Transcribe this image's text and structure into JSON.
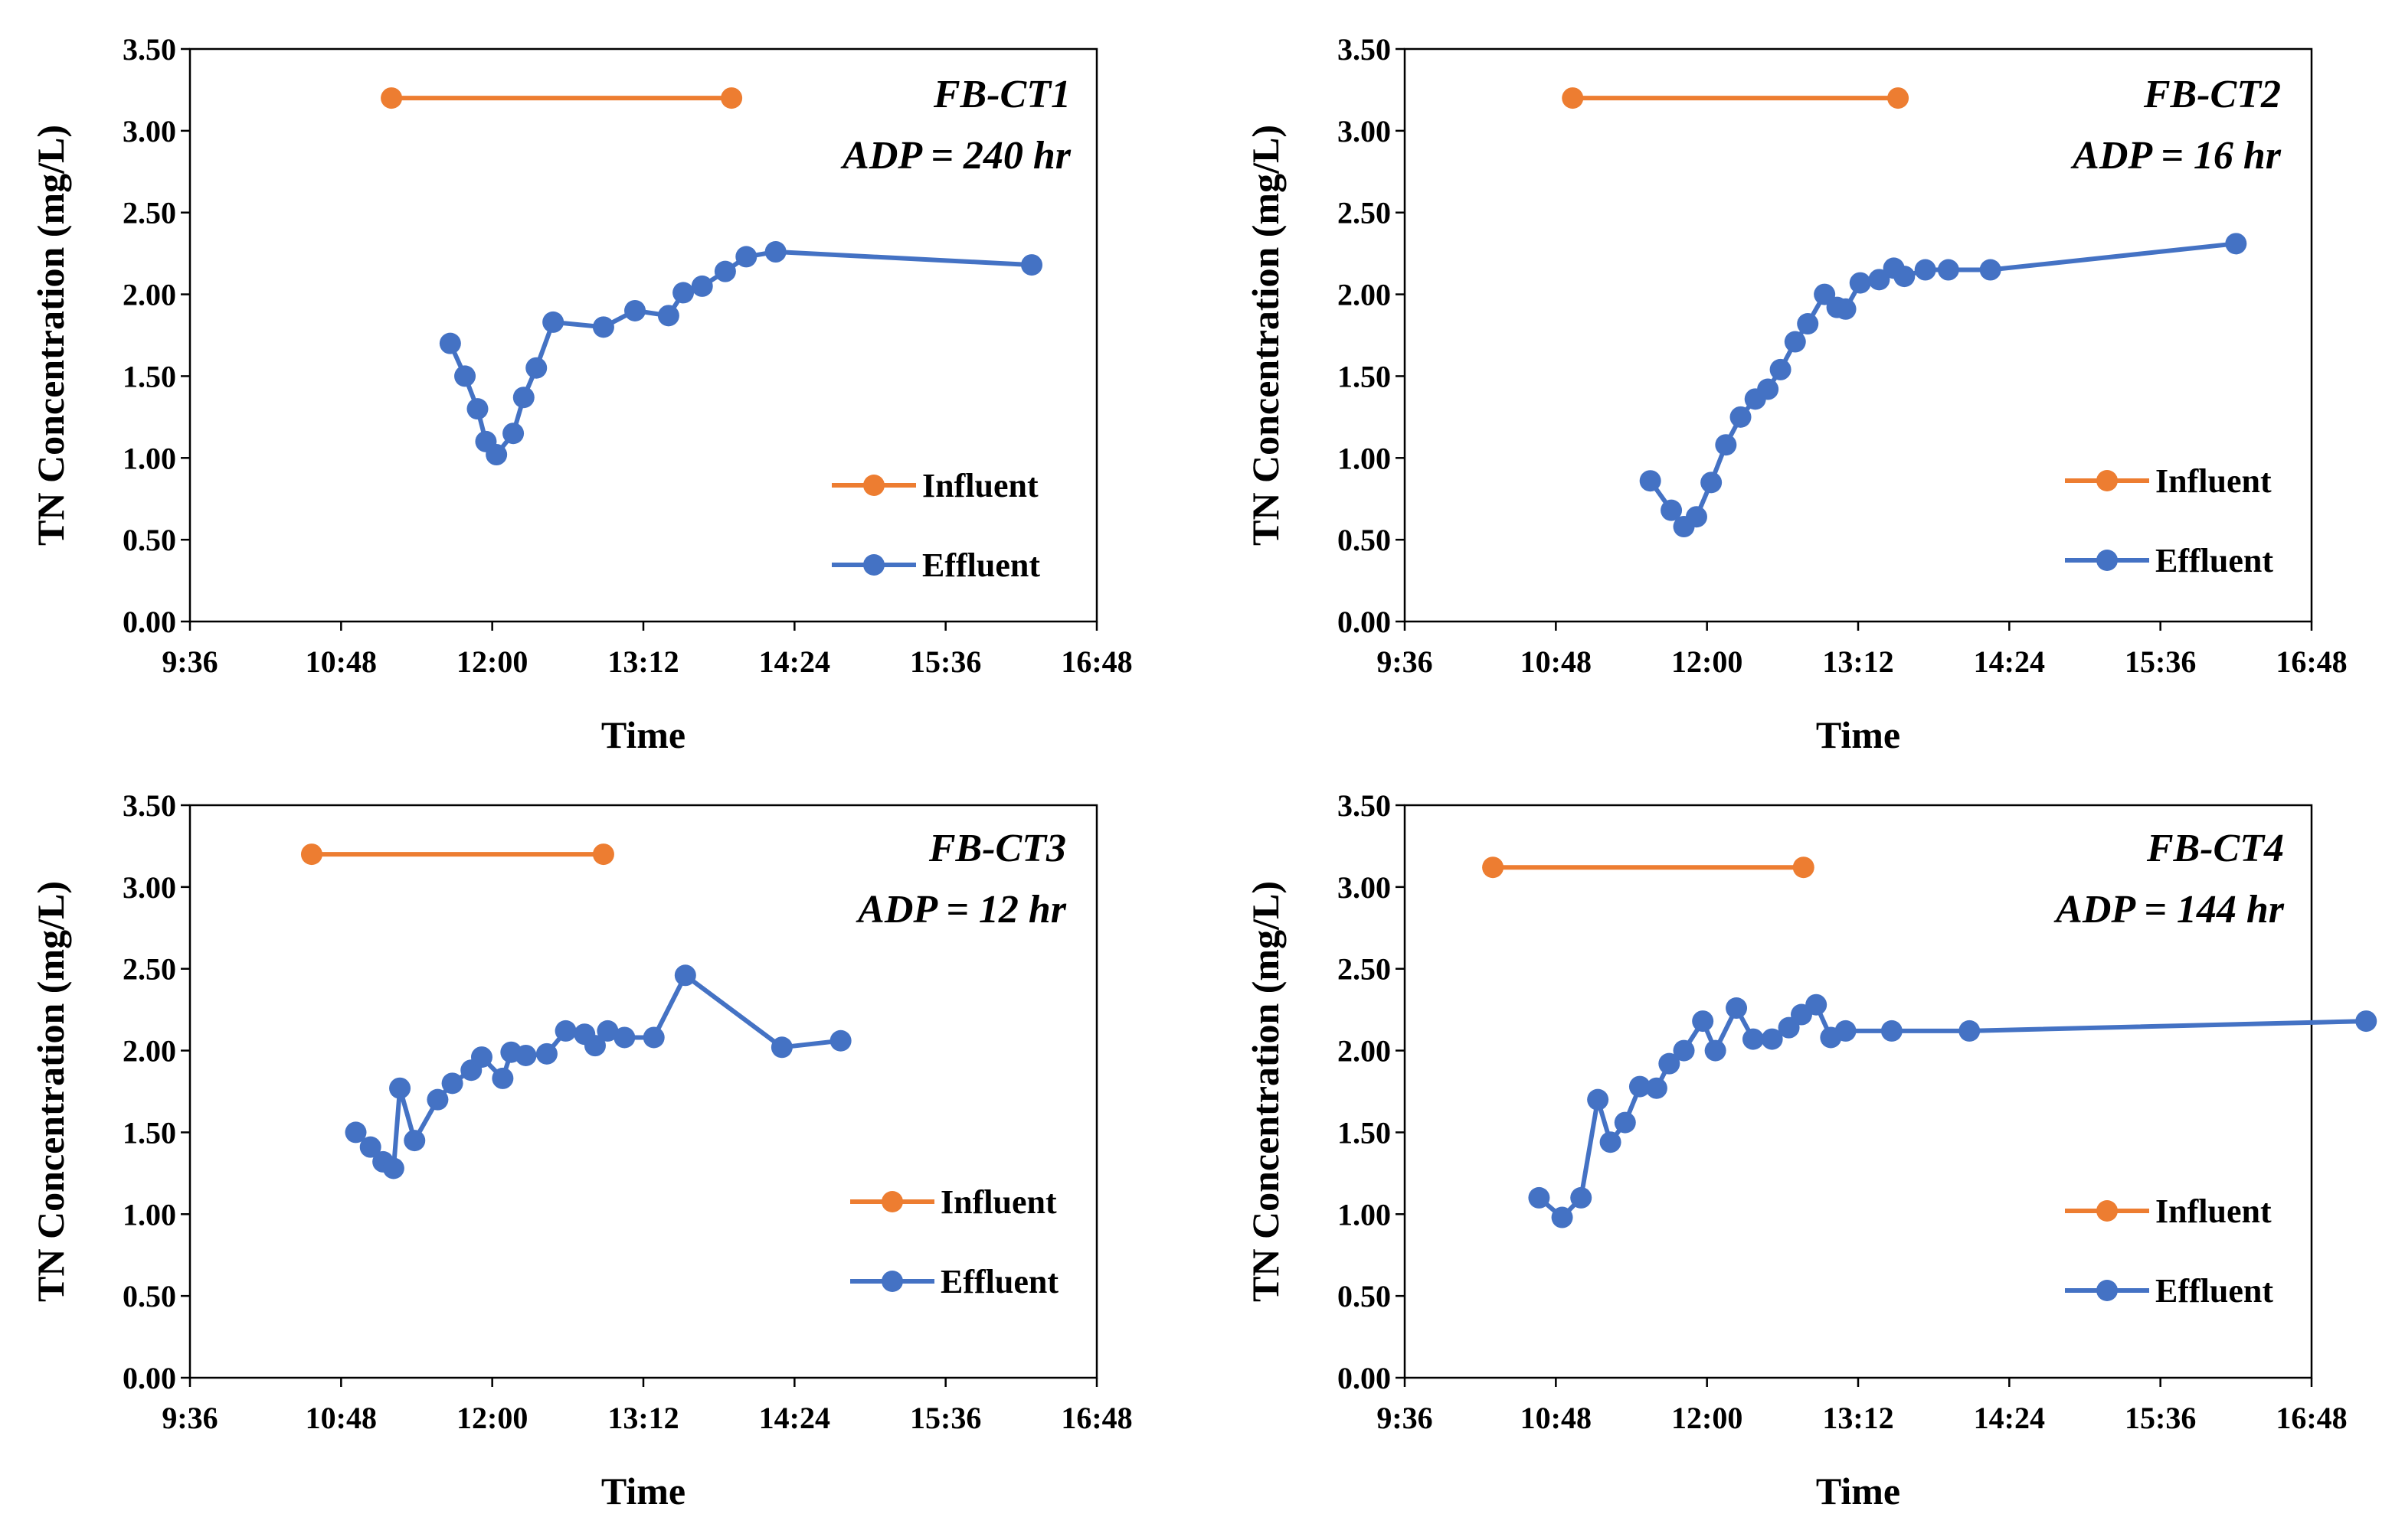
{
  "colors": {
    "influent": "#ED7D31",
    "effluent": "#4472C4",
    "axis": "#000000"
  },
  "chart_data": [
    {
      "type": "line",
      "annotation": [
        "FB-CT1",
        "ADP = 240 hr"
      ],
      "xlabel": "Time",
      "ylabel": "TN Concentration (mg/L)",
      "x_ticks": [
        "9:36",
        "10:48",
        "12:00",
        "13:12",
        "14:24",
        "15:36",
        "16:48"
      ],
      "y_ticks": [
        "0.00",
        "0.50",
        "1.00",
        "1.50",
        "2.00",
        "2.50",
        "3.00",
        "3.50"
      ],
      "xlim_minutes": [
        576,
        1008
      ],
      "ylim": [
        0,
        3.5
      ],
      "legend": [
        "Influent",
        "Effluent"
      ],
      "legend_position": "bottom-right",
      "series": [
        {
          "name": "Influent",
          "x_minutes": [
            672,
            834
          ],
          "y": [
            3.2,
            3.2
          ]
        },
        {
          "name": "Effluent",
          "x_minutes": [
            700,
            707,
            713,
            717,
            722,
            730,
            735,
            741,
            749,
            773,
            788,
            804,
            811,
            820,
            831,
            841,
            855,
            977
          ],
          "y": [
            1.7,
            1.5,
            1.3,
            1.1,
            1.02,
            1.15,
            1.37,
            1.55,
            1.83,
            1.8,
            1.9,
            1.87,
            2.01,
            2.05,
            2.14,
            2.23,
            2.26,
            2.18
          ]
        }
      ]
    },
    {
      "type": "line",
      "annotation": [
        "FB-CT2",
        "ADP = 16 hr"
      ],
      "xlabel": "Time",
      "ylabel": "TN Concentration (mg/L)",
      "x_ticks": [
        "9:36",
        "10:48",
        "12:00",
        "13:12",
        "14:24",
        "15:36",
        "16:48"
      ],
      "y_ticks": [
        "0.00",
        "0.50",
        "1.00",
        "1.50",
        "2.00",
        "2.50",
        "3.00",
        "3.50"
      ],
      "xlim_minutes": [
        576,
        1008
      ],
      "ylim": [
        0,
        3.5
      ],
      "legend": [
        "Influent",
        "Effluent"
      ],
      "legend_position": "bottom-right",
      "series": [
        {
          "name": "Influent",
          "x_minutes": [
            656,
            811
          ],
          "y": [
            3.2,
            3.2
          ]
        },
        {
          "name": "Effluent",
          "x_minutes": [
            693,
            703,
            709,
            715,
            722,
            729,
            736,
            743,
            749,
            755,
            762,
            768,
            776,
            782,
            786,
            793,
            802,
            809,
            814,
            824,
            835,
            855,
            972
          ],
          "y": [
            0.86,
            0.68,
            0.58,
            0.64,
            0.85,
            1.08,
            1.25,
            1.36,
            1.42,
            1.54,
            1.71,
            1.82,
            2.0,
            1.92,
            1.91,
            2.07,
            2.09,
            2.16,
            2.11,
            2.15,
            2.15,
            2.15,
            2.31
          ]
        }
      ]
    },
    {
      "type": "line",
      "annotation": [
        "FB-CT3",
        "ADP = 12 hr"
      ],
      "xlabel": "Time",
      "ylabel": "TN Concentration (mg/L)",
      "x_ticks": [
        "9:36",
        "10:48",
        "12:00",
        "13:12",
        "14:24",
        "15:36",
        "16:48"
      ],
      "y_ticks": [
        "0.00",
        "0.50",
        "1.00",
        "1.50",
        "2.00",
        "2.50",
        "3.00",
        "3.50"
      ],
      "xlim_minutes": [
        576,
        1008
      ],
      "ylim": [
        0,
        3.5
      ],
      "legend": [
        "Influent",
        "Effluent"
      ],
      "legend_position": "bottom-right",
      "series": [
        {
          "name": "Influent",
          "x_minutes": [
            634,
            773
          ],
          "y": [
            3.2,
            3.2
          ]
        },
        {
          "name": "Effluent",
          "x_minutes": [
            655,
            662,
            668,
            673,
            676,
            683,
            694,
            701,
            710,
            715,
            725,
            729,
            736,
            746,
            755,
            764,
            769,
            775,
            783,
            797,
            812,
            858,
            886
          ],
          "y": [
            1.5,
            1.41,
            1.32,
            1.28,
            1.77,
            1.45,
            1.7,
            1.8,
            1.88,
            1.96,
            1.83,
            1.99,
            1.97,
            1.98,
            2.12,
            2.1,
            2.03,
            2.12,
            2.08,
            2.08,
            2.46,
            2.02,
            2.06
          ]
        }
      ]
    },
    {
      "type": "line",
      "annotation": [
        "FB-CT4",
        "ADP = 144 hr"
      ],
      "xlabel": "Time",
      "ylabel": "TN Concentration (mg/L)",
      "x_ticks": [
        "9:36",
        "10:48",
        "12:00",
        "13:12",
        "14:24",
        "15:36",
        "16:48"
      ],
      "y_ticks": [
        "0.00",
        "0.50",
        "1.00",
        "1.50",
        "2.00",
        "2.50",
        "3.00",
        "3.50"
      ],
      "xlim_minutes": [
        576,
        1008
      ],
      "ylim": [
        0,
        3.5
      ],
      "legend": [
        "Influent",
        "Effluent"
      ],
      "legend_position": "bottom-right",
      "series": [
        {
          "name": "Influent",
          "x_minutes": [
            618,
            766
          ],
          "y": [
            3.12,
            3.12
          ]
        },
        {
          "name": "Effluent",
          "x_minutes": [
            640,
            651,
            660,
            668,
            674,
            681,
            688,
            696,
            702,
            709,
            718,
            724,
            734,
            742,
            751,
            759,
            765,
            772,
            779,
            786,
            808,
            845,
            1034
          ],
          "y": [
            1.1,
            0.98,
            1.1,
            1.7,
            1.44,
            1.56,
            1.78,
            1.77,
            1.92,
            2.0,
            2.18,
            2.0,
            2.26,
            2.07,
            2.07,
            2.14,
            2.22,
            2.28,
            2.08,
            2.12,
            2.12,
            2.12,
            2.18
          ]
        }
      ]
    }
  ]
}
